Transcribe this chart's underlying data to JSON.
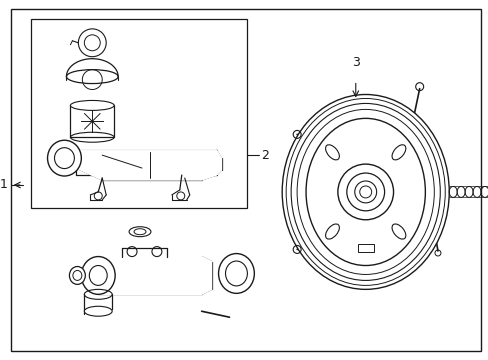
{
  "bg_color": "#ffffff",
  "line_color": "#1a1a1a",
  "label_1": "1",
  "label_2": "2",
  "label_3": "3"
}
